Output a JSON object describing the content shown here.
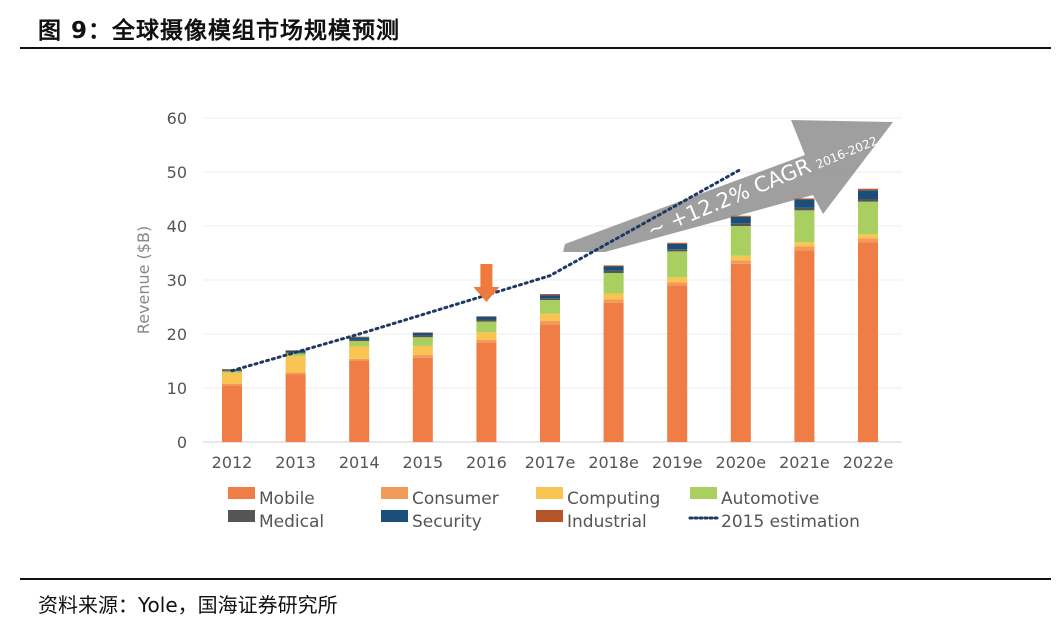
{
  "figure": {
    "title": "图 9：全球摄像模组市场规模预测",
    "source": "资料来源：Yole，国海证券研究所"
  },
  "chart_data": {
    "type": "bar",
    "stacked": true,
    "ylabel": "Revenue ($B)",
    "ylim": [
      0,
      60
    ],
    "yticks": [
      0,
      10,
      20,
      30,
      40,
      50,
      60
    ],
    "categories": [
      "2012",
      "2013",
      "2014",
      "2015",
      "2016",
      "2017e",
      "2018e",
      "2019e",
      "2020e",
      "2021e",
      "2022e"
    ],
    "series": [
      {
        "name": "Mobile",
        "color": "#EF7D45",
        "values": [
          10.5,
          12.5,
          15,
          15.6,
          18.4,
          21.8,
          25.8,
          29,
          33,
          35.5,
          37
        ]
      },
      {
        "name": "Consumer",
        "color": "#F29A5A",
        "values": [
          0.3,
          0.4,
          0.4,
          0.5,
          0.5,
          0.6,
          0.6,
          0.6,
          0.6,
          0.7,
          0.7
        ]
      },
      {
        "name": "Computing",
        "color": "#F9C452",
        "values": [
          2,
          3,
          2.3,
          1.7,
          1.4,
          1.4,
          1.1,
          0.9,
          0.9,
          0.8,
          0.8
        ]
      },
      {
        "name": "Automotive",
        "color": "#A8CF5F",
        "values": [
          0.3,
          0.5,
          1,
          1.6,
          2,
          2.5,
          3.8,
          4.8,
          5.5,
          5.9,
          6
        ]
      },
      {
        "name": "Medical",
        "color": "#555555",
        "values": [
          0.1,
          0.2,
          0.2,
          0.3,
          0.3,
          0.3,
          0.4,
          0.4,
          0.5,
          0.5,
          0.5
        ]
      },
      {
        "name": "Security",
        "color": "#1C4E7A",
        "values": [
          0.2,
          0.3,
          0.5,
          0.5,
          0.6,
          0.6,
          0.8,
          1,
          1.2,
          1.5,
          1.6
        ]
      },
      {
        "name": "Industrial",
        "color": "#B5562A",
        "values": [
          0.1,
          0.1,
          0.1,
          0.1,
          0.1,
          0.2,
          0.2,
          0.2,
          0.2,
          0.2,
          0.3
        ]
      }
    ],
    "estimation_2015": {
      "name": "2015 estimation",
      "x": [
        "2012",
        "2014",
        "2017e",
        "2020e"
      ],
      "values": [
        13.2,
        20,
        30.8,
        50.5
      ]
    },
    "annotations": {
      "cagr_text": "~ +12.2% CAGR",
      "cagr_period": "2016-2022",
      "marker_category": "2016"
    },
    "legend": [
      {
        "label": "Mobile",
        "kind": "box",
        "color": "#EF7D45"
      },
      {
        "label": "Consumer",
        "kind": "box",
        "color": "#F29A5A"
      },
      {
        "label": "Computing",
        "kind": "box",
        "color": "#F9C452"
      },
      {
        "label": "Automotive",
        "kind": "box",
        "color": "#A8CF5F"
      },
      {
        "label": "Medical",
        "kind": "box",
        "color": "#555555"
      },
      {
        "label": "Security",
        "kind": "box",
        "color": "#1C4E7A"
      },
      {
        "label": "Industrial",
        "kind": "box",
        "color": "#B5562A"
      },
      {
        "label": "2015 estimation",
        "kind": "dots",
        "color": "#1F3864"
      }
    ]
  }
}
